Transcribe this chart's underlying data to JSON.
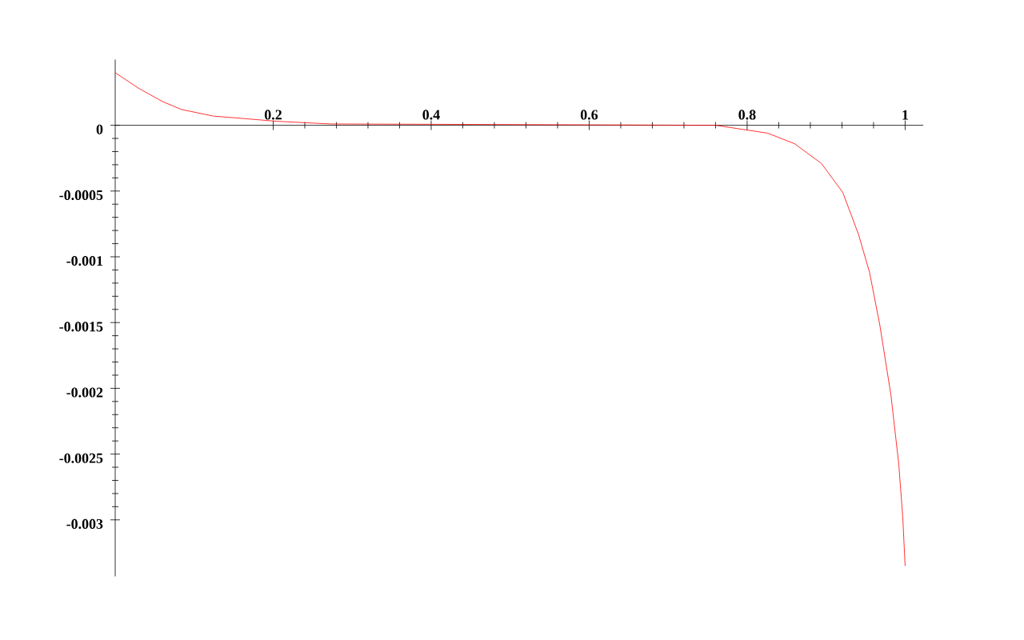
{
  "chart_data": {
    "type": "line",
    "xlim": [
      0,
      1.023
    ],
    "ylim": [
      -0.00343,
      0.0005
    ],
    "xticks": [
      0.2,
      0.4,
      0.6,
      0.8,
      1
    ],
    "yticks": [
      0,
      -0.0005,
      -0.001,
      -0.0015,
      -0.002,
      -0.0025,
      -0.003
    ],
    "grid": false,
    "marker": "none",
    "line_style": "solid",
    "series": [
      {
        "color": "#ff0000",
        "x": [
          0,
          0.03,
          0.06,
          0.084,
          0.124,
          0.165,
          0.205,
          0.273,
          0.76,
          0.826,
          0.86,
          0.894,
          0.921,
          0.941,
          0.955,
          0.968,
          0.982,
          0.992,
          0.997,
          1.0
        ],
        "values": [
          0.0004,
          0.00028,
          0.00018,
          0.00012,
          7e-05,
          5e-05,
          3e-05,
          1e-05,
          0,
          -6e-05,
          -0.00014,
          -0.00029,
          -0.00051,
          -0.00083,
          -0.00112,
          -0.00152,
          -0.00205,
          -0.00258,
          -0.00298,
          -0.00335
        ]
      }
    ]
  }
}
